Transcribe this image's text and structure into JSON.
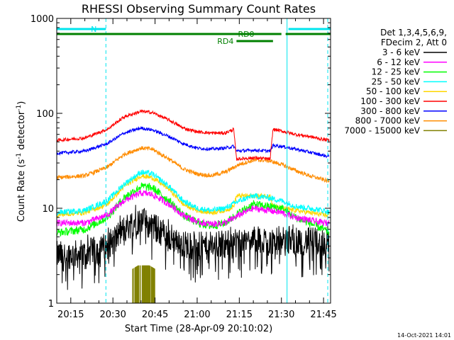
{
  "chart_data": {
    "type": "line",
    "title": "RHESSI Observing Summary Count Rates",
    "xlabel": "Start Time (28-Apr-09 20:10:02)",
    "ylabel_main": "Count Rate (s",
    "ylabel_sup1": "-1",
    "ylabel_mid": " detector",
    "ylabel_sup2": "-1",
    "ylabel_end": ")",
    "y_scale": "log",
    "ylim": [
      1,
      1000
    ],
    "xlim_minutes": [
      0,
      97.5
    ],
    "x_tick_labels": [
      "20:15",
      "20:30",
      "20:45",
      "21:00",
      "21:15",
      "21:30",
      "21:45"
    ],
    "x_tick_minutes": [
      5,
      20,
      35,
      50,
      65,
      80,
      95
    ],
    "y_tick_labels": [
      "1",
      "10",
      "100",
      "1000"
    ],
    "y_tick_values": [
      1,
      10,
      100,
      1000
    ],
    "legend_header": [
      "Det 1,3,4,5,6,9,",
      "FDecim 2, Att 0"
    ],
    "legend_position": "top-right",
    "footer_date": "14-Oct-2021 14:01",
    "annotations": {
      "night_label": "N",
      "rd0_label": "RD0",
      "rd4_label": "RD4"
    },
    "night_intervals_minutes": [
      [
        0,
        17.5
      ],
      [
        82.5,
        97.5
      ]
    ],
    "cyan_solid_lines_minutes": [
      0,
      82
    ],
    "cyan_dashed_lines_minutes": [
      17.5,
      96.5
    ],
    "rd0_segments_minutes": [
      [
        0,
        80
      ],
      [
        81.5,
        97.5
      ]
    ],
    "rd4_segment_minutes": [
      64,
      77
    ],
    "series": [
      {
        "name": "3 - 6 keV",
        "color": "#000000",
        "x": [
          0,
          10,
          18,
          24,
          27,
          30,
          34,
          40,
          45,
          50,
          55,
          60,
          65,
          70,
          75,
          80,
          85,
          90,
          95,
          97
        ],
        "y": [
          3.2,
          3.3,
          4.0,
          6.0,
          7.0,
          7.5,
          6.5,
          5.0,
          4.2,
          4.0,
          4.0,
          4.2,
          4.5,
          4.6,
          4.6,
          4.6,
          4.5,
          4.5,
          4.4,
          4.3
        ]
      },
      {
        "name": "6 - 12 keV",
        "color": "#ff00ff",
        "x": [
          0,
          10,
          18,
          24,
          30,
          34,
          40,
          45,
          50,
          55,
          60,
          65,
          70,
          75,
          80,
          85,
          90,
          95,
          97
        ],
        "y": [
          7.0,
          7.0,
          8.5,
          12.0,
          14.5,
          14.0,
          11.0,
          8.5,
          7.2,
          6.8,
          7.0,
          8.5,
          10.0,
          9.5,
          9.0,
          8.0,
          7.5,
          7.0,
          7.0
        ]
      },
      {
        "name": "12 - 25 keV",
        "color": "#00ff00",
        "x": [
          0,
          10,
          18,
          24,
          30,
          34,
          40,
          45,
          50,
          55,
          60,
          65,
          70,
          75,
          80,
          85,
          90,
          95,
          97
        ],
        "y": [
          5.5,
          6.0,
          8.0,
          13.0,
          17.0,
          16.5,
          12.0,
          8.5,
          7.0,
          6.5,
          7.0,
          9.0,
          11.0,
          10.5,
          10.0,
          8.0,
          7.0,
          6.0,
          5.5
        ]
      },
      {
        "name": "25 - 50 keV",
        "color": "#00ffff",
        "x": [
          0,
          10,
          18,
          24,
          30,
          34,
          40,
          45,
          50,
          55,
          60,
          65,
          70,
          75,
          80,
          85,
          90,
          95,
          97
        ],
        "y": [
          9.0,
          9.5,
          12.0,
          18.0,
          24.0,
          23.0,
          17.0,
          12.0,
          10.0,
          9.5,
          10.0,
          12.0,
          13.5,
          13.0,
          12.0,
          10.5,
          10.0,
          9.5,
          9.0
        ]
      },
      {
        "name": "50 - 100 keV",
        "color": "#ffd700",
        "x": [
          0,
          10,
          18,
          24,
          30,
          34,
          40,
          45,
          50,
          55,
          60,
          63,
          64,
          70,
          76,
          77,
          80,
          85,
          90,
          95,
          97
        ],
        "y": [
          8.5,
          9.0,
          11.0,
          17.0,
          22.0,
          21.0,
          16.0,
          11.0,
          9.5,
          9.0,
          9.5,
          10.5,
          13.5,
          13.5,
          13.5,
          10.5,
          10.0,
          9.5,
          9.0,
          8.5,
          8.5
        ]
      },
      {
        "name": "100 - 300 keV",
        "color": "#ff0000",
        "x": [
          0,
          10,
          18,
          24,
          30,
          34,
          40,
          45,
          50,
          55,
          60,
          63,
          64,
          70,
          76,
          77,
          80,
          85,
          90,
          95,
          97
        ],
        "y": [
          52,
          55,
          68,
          92,
          105,
          102,
          85,
          70,
          64,
          62,
          62,
          68,
          33,
          34,
          33,
          68,
          65,
          60,
          57,
          53,
          52
        ]
      },
      {
        "name": "300 - 800 keV",
        "color": "#0000ff",
        "x": [
          0,
          10,
          18,
          24,
          30,
          34,
          40,
          45,
          50,
          55,
          60,
          63,
          64,
          70,
          76,
          77,
          80,
          85,
          90,
          95,
          97
        ],
        "y": [
          38,
          40,
          48,
          62,
          70,
          67,
          57,
          48,
          43,
          42,
          43,
          45,
          40,
          41,
          40,
          46,
          45,
          42,
          39,
          36,
          35
        ]
      },
      {
        "name": "800 - 7000 keV",
        "color": "#ff8c00",
        "x": [
          0,
          10,
          18,
          24,
          30,
          34,
          40,
          45,
          50,
          55,
          60,
          65,
          70,
          75,
          80,
          85,
          90,
          95,
          97
        ],
        "y": [
          21,
          22,
          27,
          37,
          43,
          42,
          33,
          26,
          23,
          22,
          24,
          29,
          32,
          32,
          29,
          25,
          22,
          20,
          19
        ]
      },
      {
        "name": "7000 - 15000 keV",
        "color": "#808000",
        "x": [
          27,
          28,
          29,
          30,
          31,
          32,
          33,
          34,
          35
        ],
        "y": [
          2.3,
          2.4,
          2.5,
          2.5,
          2.5,
          2.5,
          2.5,
          2.4,
          2.3
        ]
      }
    ]
  }
}
